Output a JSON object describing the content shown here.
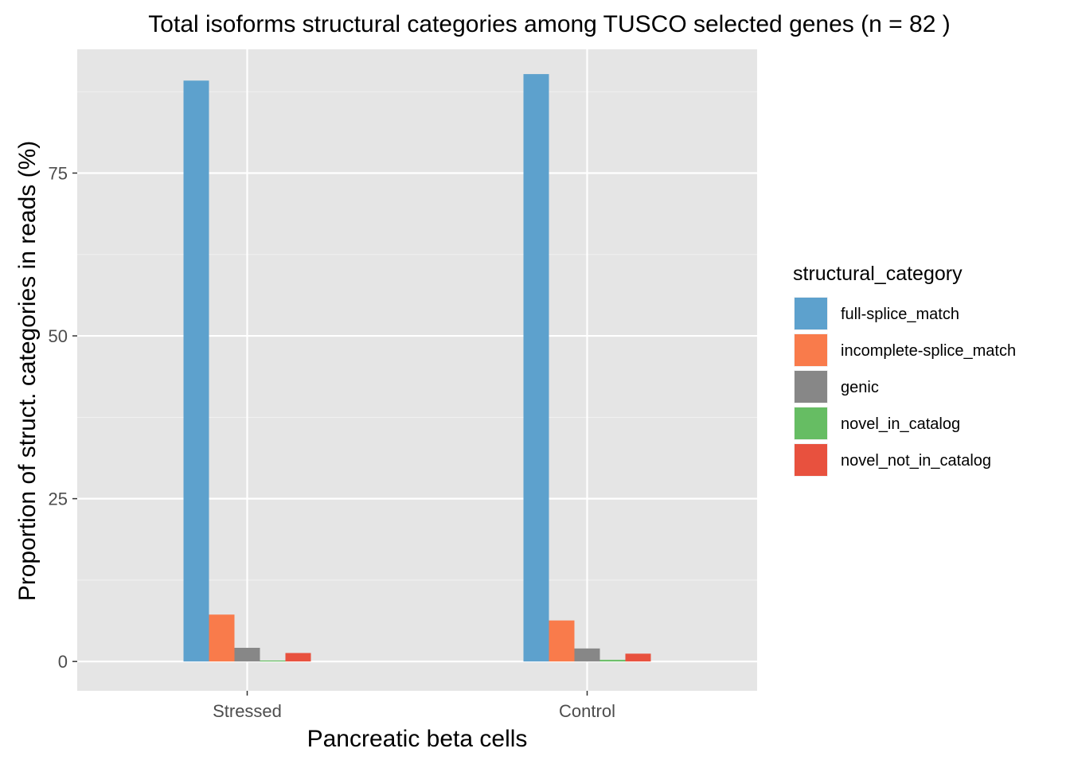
{
  "chart_data": {
    "type": "bar",
    "title": "Total isoforms structural categories among TUSCO selected genes (n = 82 )",
    "xlabel": "Pancreatic beta cells",
    "ylabel": "Proportion of struct. categories in reads (%)",
    "categories": [
      "Stressed",
      "Control"
    ],
    "ylim": [
      -4.5,
      94
    ],
    "yticks": [
      0,
      25,
      50,
      75
    ],
    "grid": true,
    "legend_title": "structural_category",
    "legend_position": "right",
    "series": [
      {
        "name": "full-splice_match",
        "color": "#5DA1CD",
        "values": [
          89.2,
          90.2
        ]
      },
      {
        "name": "incomplete-splice_match",
        "color": "#F97B4B",
        "values": [
          7.2,
          6.3
        ]
      },
      {
        "name": "genic",
        "color": "#878787",
        "values": [
          2.1,
          2.0
        ]
      },
      {
        "name": "novel_in_catalog",
        "color": "#66BD63",
        "values": [
          0.15,
          0.25
        ]
      },
      {
        "name": "novel_not_in_catalog",
        "color": "#E8513E",
        "values": [
          1.3,
          1.2
        ]
      }
    ]
  }
}
